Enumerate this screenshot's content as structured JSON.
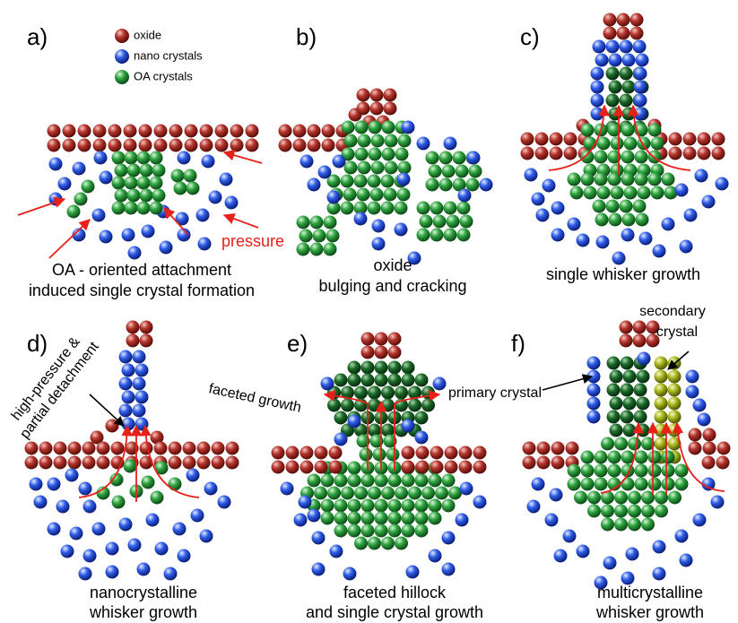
{
  "legend": [
    "oxide",
    "nano crystals",
    "OA crystals"
  ],
  "panels": [
    {
      "label": "a)",
      "annotations": [
        "pressure"
      ],
      "caption": [
        "OA - oriented attachment",
        "induced single crystal formation"
      ]
    },
    {
      "label": "b)",
      "caption": [
        "oxide",
        "bulging and cracking"
      ]
    },
    {
      "label": "c)",
      "caption": [
        "single whisker growth"
      ]
    },
    {
      "label": "d)",
      "annotations": [
        "high-pressure &",
        "partial detachment"
      ],
      "caption": [
        "nanocrystalline",
        "whisker growth"
      ]
    },
    {
      "label": "e)",
      "annotations": [
        "faceted growth"
      ],
      "caption": [
        "faceted hillock",
        "and single crystal growth"
      ]
    },
    {
      "label": "f)",
      "annotations": [
        "secondary",
        "crystal",
        "primary crystal"
      ],
      "caption": [
        "multicrystalline",
        "whisker growth"
      ]
    }
  ]
}
